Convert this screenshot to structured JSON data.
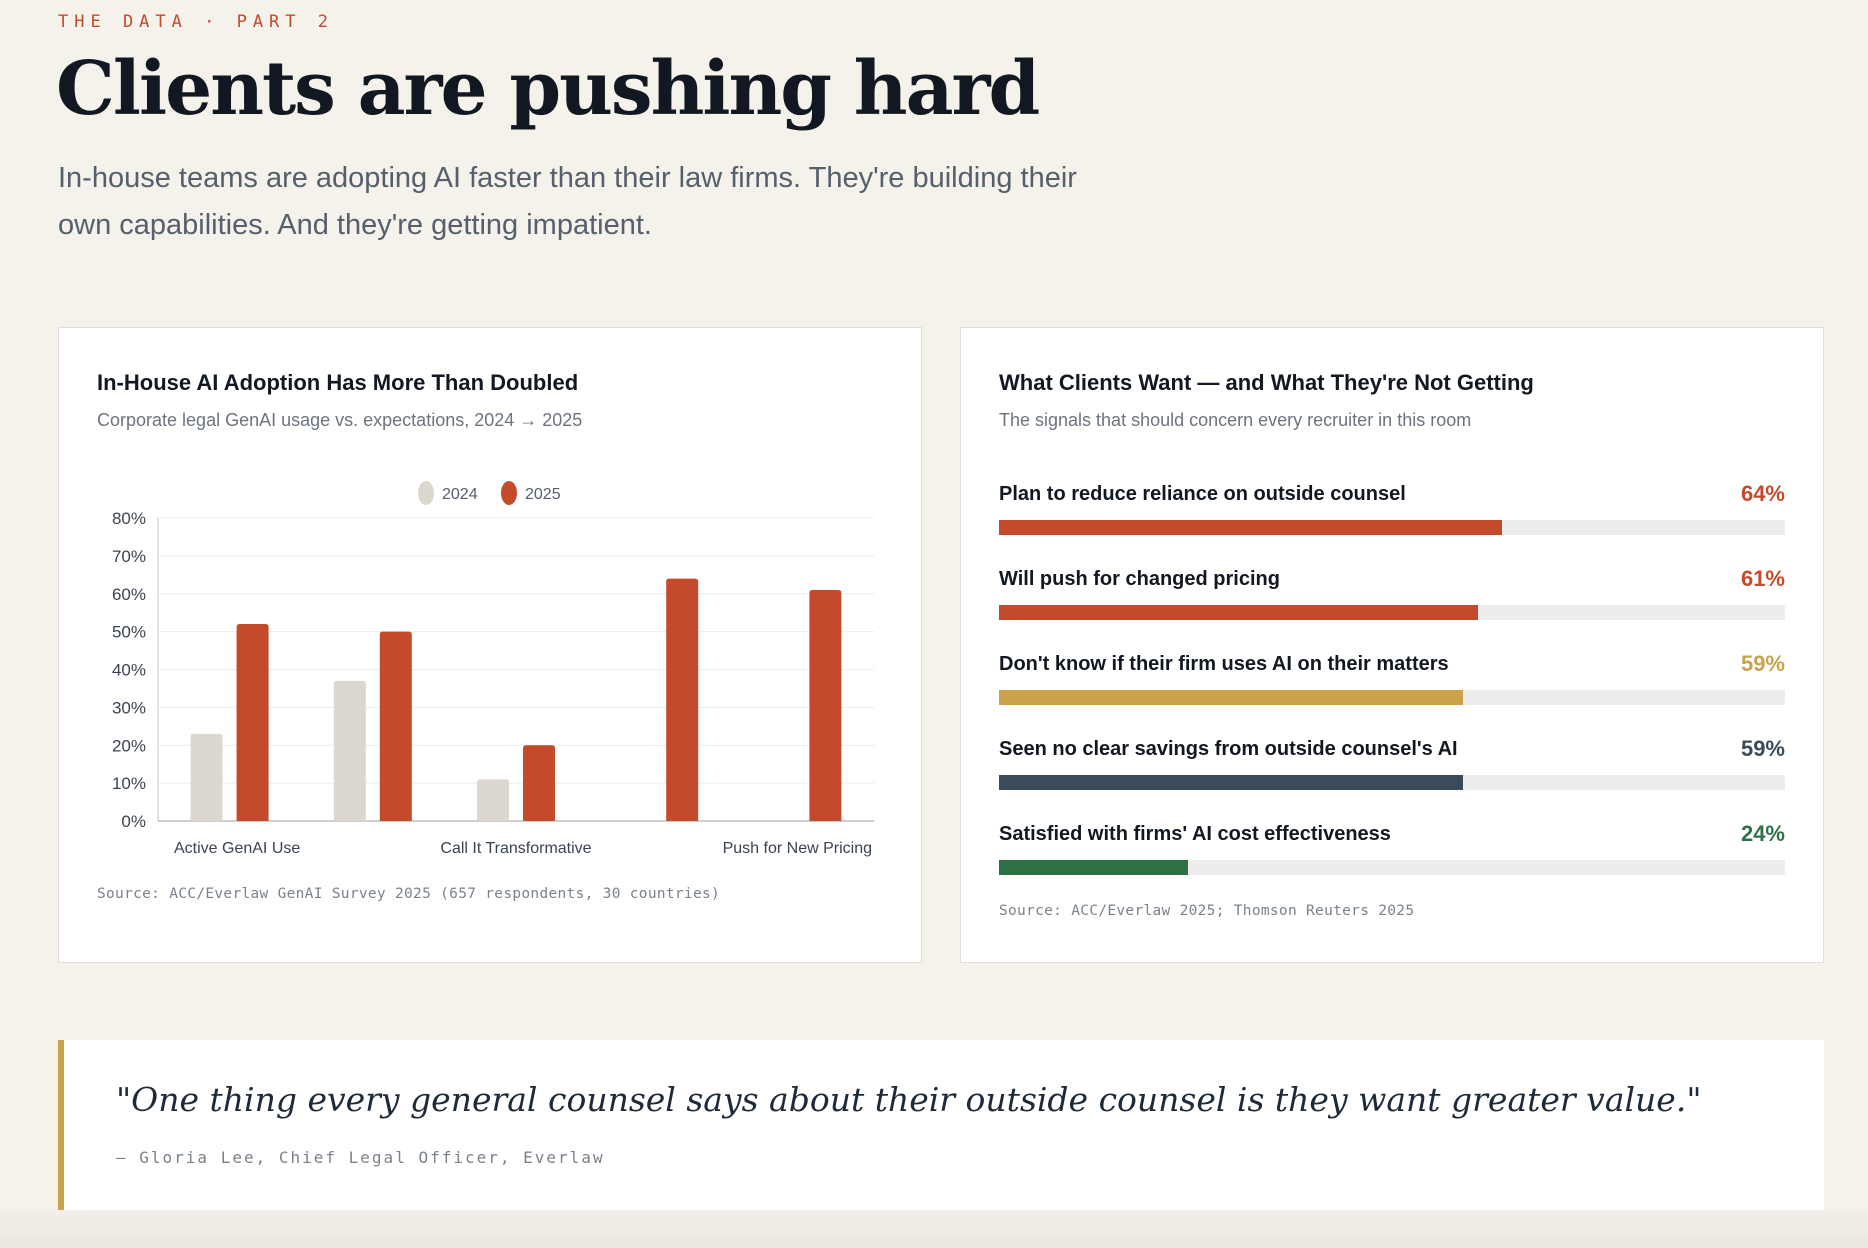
{
  "header": {
    "eyebrow": "THE DATA · PART 2",
    "title": "Clients are pushing hard",
    "lede": "In-house teams are adopting AI faster than their law firms. They're building their own capabilities. And they're getting impatient."
  },
  "left_card": {
    "title": "In-House AI Adoption Has More Than Doubled",
    "subtitle": "Corporate legal GenAI usage vs. expectations, 2024 → 2025",
    "source": "Source: ACC/Everlaw GenAI Survey 2025 (657 respondents, 30 countries)"
  },
  "right_card": {
    "title": "What Clients Want — and What They're Not Getting",
    "subtitle": "The signals that should concern every recruiter in this room",
    "source": "Source: ACC/Everlaw 2025; Thomson Reuters 2025"
  },
  "chart_data": [
    {
      "type": "bar",
      "title": "In-House AI Adoption Has More Than Doubled",
      "subtitle": "Corporate legal GenAI usage vs. expectations, 2024 → 2025",
      "groups": [
        "Active GenAI Use",
        "",
        "Call It Transformative",
        "",
        "Push for New Pricing"
      ],
      "tick_labels": [
        {
          "label": "Active GenAI Use",
          "group": 0
        },
        {
          "label": "Call It Transformative",
          "group": 2
        },
        {
          "label": "Push for New Pricing",
          "group": 4
        }
      ],
      "series": [
        {
          "name": "2024",
          "color": "#ddd8cf",
          "values": [
            23,
            37,
            11,
            null,
            null
          ]
        },
        {
          "name": "2025",
          "color": "#c44a2c",
          "values": [
            52,
            50,
            20,
            64,
            61
          ]
        }
      ],
      "ylim": [
        0,
        80
      ],
      "yticks": [
        "0%",
        "10%",
        "20%",
        "30%",
        "40%",
        "50%",
        "60%",
        "70%",
        "80%"
      ],
      "ytick_values": [
        0,
        10,
        20,
        30,
        40,
        50,
        60,
        70,
        80
      ],
      "grid": true,
      "legend": "top-center"
    },
    {
      "type": "bar",
      "orientation": "horizontal",
      "title": "What Clients Want — and What They're Not Getting",
      "items": [
        {
          "label": "Plan to reduce reliance on outside counsel",
          "value": 64,
          "display": "64%",
          "color": "#c44a2c"
        },
        {
          "label": "Will push for changed pricing",
          "value": 61,
          "display": "61%",
          "color": "#c44a2c"
        },
        {
          "label": "Don't know if their firm uses AI on their matters",
          "value": 59,
          "display": "59%",
          "color": "#c9a24a"
        },
        {
          "label": "Seen no clear savings from outside counsel's AI",
          "value": 59,
          "display": "59%",
          "color": "#3a4b5c"
        },
        {
          "label": "Satisfied with firms' AI cost effectiveness",
          "value": 24,
          "display": "24%",
          "color": "#2e7145"
        }
      ],
      "xlim": [
        0,
        100
      ]
    }
  ],
  "quote": {
    "text": "\"One thing every general counsel says about their outside counsel is they want greater value.\"",
    "attribution": "— Gloria Lee, Chief Legal Officer, Everlaw"
  }
}
